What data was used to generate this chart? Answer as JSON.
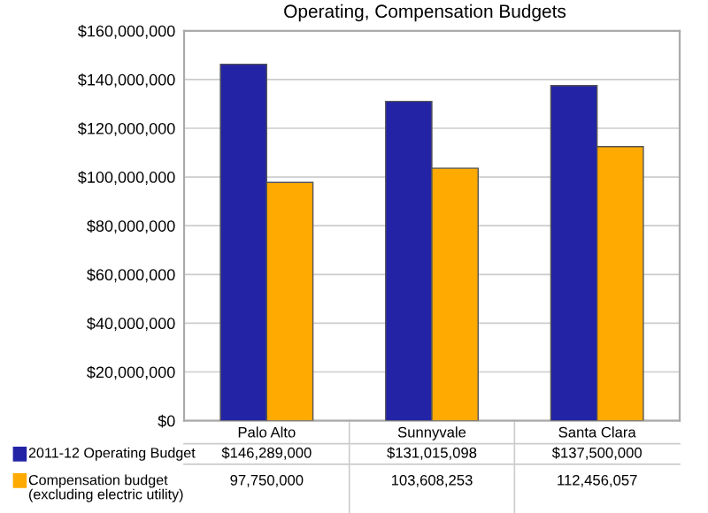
{
  "chart_data": {
    "type": "bar",
    "title": "Operating, Compensation Budgets",
    "categories": [
      "Palo Alto",
      "Sunnyvale",
      "Santa Clara"
    ],
    "series": [
      {
        "name": "2011-12 Operating Budget",
        "color": "#2323a6",
        "values": [
          146289000,
          131015098,
          137500000
        ],
        "value_labels": [
          "$146,289,000",
          "$131,015,098",
          "$137,500,000"
        ]
      },
      {
        "name": "Compensation budget\n(excluding electric utility)",
        "color": "#ffaa00",
        "values": [
          97750000,
          103608253,
          112456057
        ],
        "value_labels": [
          "97,750,000",
          "103,608,253",
          "112,456,057"
        ]
      }
    ],
    "ylim": [
      0,
      160000000
    ],
    "yticks": [
      {
        "value": 0,
        "label": "$0"
      },
      {
        "value": 20000000,
        "label": "$20,000,000"
      },
      {
        "value": 40000000,
        "label": "$40,000,000"
      },
      {
        "value": 60000000,
        "label": "$60,000,000"
      },
      {
        "value": 80000000,
        "label": "$80,000,000"
      },
      {
        "value": 100000000,
        "label": "$100,000,000"
      },
      {
        "value": 120000000,
        "label": "$120,000,000"
      },
      {
        "value": 140000000,
        "label": "$140,000,000"
      },
      {
        "value": 160000000,
        "label": "$160,000,000"
      }
    ],
    "grid": "y",
    "legend": "bottom"
  }
}
